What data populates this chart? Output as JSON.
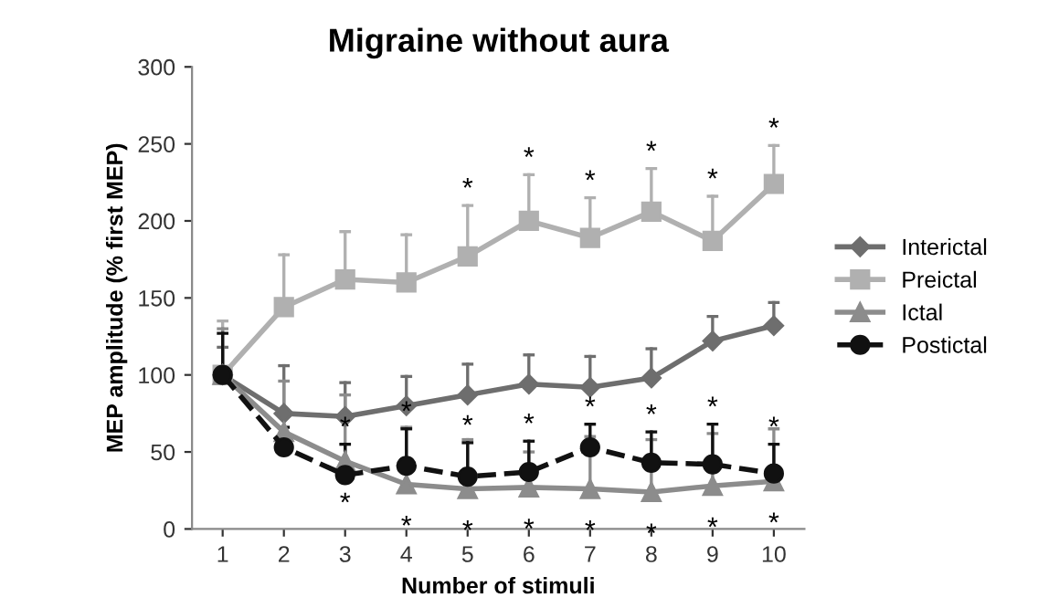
{
  "chart_data": {
    "type": "line",
    "title": "Migraine without aura",
    "xlabel": "Number of stimuli",
    "ylabel": "MEP amplitude (% first MEP)",
    "categories": [
      "1",
      "2",
      "3",
      "4",
      "5",
      "6",
      "7",
      "8",
      "9",
      "10"
    ],
    "series": [
      {
        "name": "Interictal",
        "color": "#6e6e6e",
        "marker": "diamond",
        "line_style": "solid",
        "values": [
          100,
          75,
          73,
          80,
          87,
          94,
          92,
          98,
          122,
          132
        ],
        "errors": [
          [
            100,
            118
          ],
          [
            75,
            106
          ],
          [
            73,
            95
          ],
          [
            80,
            99
          ],
          [
            87,
            107
          ],
          [
            94,
            113
          ],
          [
            92,
            112
          ],
          [
            98,
            117
          ],
          [
            122,
            138
          ],
          [
            132,
            147
          ]
        ]
      },
      {
        "name": "Preictal",
        "color": "#b0b0b0",
        "marker": "square",
        "line_style": "solid",
        "values": [
          100,
          144,
          162,
          160,
          177,
          200,
          189,
          206,
          187,
          224
        ],
        "errors": [
          [
            100,
            135
          ],
          [
            144,
            178
          ],
          [
            162,
            193
          ],
          [
            160,
            191
          ],
          [
            177,
            210
          ],
          [
            200,
            230
          ],
          [
            189,
            215
          ],
          [
            206,
            234
          ],
          [
            187,
            216
          ],
          [
            224,
            249
          ]
        ]
      },
      {
        "name": "Ictal",
        "color": "#8c8c8c",
        "marker": "triangle",
        "line_style": "solid",
        "values": [
          100,
          63,
          44,
          29,
          26,
          27,
          26,
          24,
          28,
          31
        ],
        "errors": [
          [
            100,
            130
          ],
          [
            63,
            96
          ],
          [
            44,
            87
          ],
          [
            29,
            66
          ],
          [
            26,
            58
          ],
          [
            27,
            50
          ],
          [
            26,
            60
          ],
          [
            24,
            58
          ],
          [
            28,
            62
          ],
          [
            31,
            65
          ]
        ]
      },
      {
        "name": "Postictal",
        "color": "#111111",
        "marker": "circle",
        "line_style": "dashed",
        "values": [
          100,
          53,
          35,
          41,
          34,
          37,
          53,
          43,
          42,
          36
        ],
        "errors": [
          [
            100,
            127
          ],
          [
            53,
            66
          ],
          [
            35,
            55
          ],
          [
            41,
            65
          ],
          [
            34,
            56
          ],
          [
            37,
            57
          ],
          [
            53,
            68
          ],
          [
            43,
            63
          ],
          [
            42,
            68
          ],
          [
            36,
            55
          ]
        ]
      }
    ],
    "ylim": [
      0,
      300
    ],
    "yticks": [
      0,
      50,
      100,
      150,
      200,
      250,
      300
    ],
    "grid": false,
    "legend": "right",
    "annotations": [
      {
        "text": "*",
        "x": "5",
        "y": 177
      },
      {
        "text": "*",
        "x": "6",
        "y": 200
      },
      {
        "text": "*",
        "x": "7",
        "y": 189
      },
      {
        "text": "*",
        "x": "8",
        "y": 206
      },
      {
        "text": "*",
        "x": "9",
        "y": 187
      },
      {
        "text": "*",
        "x": "10",
        "y": 224
      },
      {
        "text": "*",
        "x": "3",
        "y": 35
      },
      {
        "text": "*",
        "x": "4",
        "y": 41
      },
      {
        "text": "*",
        "x": "5",
        "y": 34
      },
      {
        "text": "*",
        "x": "6",
        "y": 37
      },
      {
        "text": "*",
        "x": "7",
        "y": 53
      },
      {
        "text": "*",
        "x": "8",
        "y": 43
      },
      {
        "text": "*",
        "x": "9",
        "y": 42
      },
      {
        "text": "*",
        "x": "10",
        "y": 36
      },
      {
        "text": "*",
        "x": "3",
        "y": 44
      },
      {
        "text": "*",
        "x": "4",
        "y": 29
      },
      {
        "text": "*",
        "x": "5",
        "y": 26
      },
      {
        "text": "*",
        "x": "6",
        "y": 27
      },
      {
        "text": "*",
        "x": "7",
        "y": 26
      },
      {
        "text": "*",
        "x": "8",
        "y": 24
      },
      {
        "text": "*",
        "x": "9",
        "y": 28
      },
      {
        "text": "*",
        "x": "10",
        "y": 31
      }
    ]
  }
}
